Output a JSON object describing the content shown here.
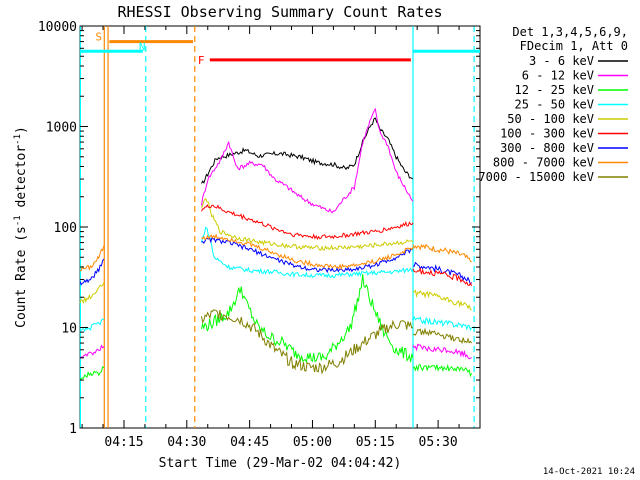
{
  "chart_data": {
    "type": "line",
    "title": "RHESSI Observing Summary Count Rates",
    "xlabel": "Start Time (29-Mar-02 04:04:42)",
    "ylabel_main": "Count Rate (s",
    "ylabel_sup1": "-1",
    "ylabel_mid": " detector",
    "ylabel_sup2": "-1",
    "ylabel_end": ")",
    "y_scale": "log",
    "ylim": [
      1,
      10000
    ],
    "xlim_minutes": [
      4.5,
      100
    ],
    "y_ticks": [
      {
        "value": 1,
        "label": "1"
      },
      {
        "value": 10,
        "label": "10"
      },
      {
        "value": 100,
        "label": "100"
      },
      {
        "value": 1000,
        "label": "1000"
      },
      {
        "value": 10000,
        "label": "10000"
      }
    ],
    "x_ticks": [
      {
        "minute": 15,
        "label": "04:15"
      },
      {
        "minute": 30,
        "label": "04:30"
      },
      {
        "minute": 45,
        "label": "04:45"
      },
      {
        "minute": 60,
        "label": "05:00"
      },
      {
        "minute": 75,
        "label": "05:15"
      },
      {
        "minute": 90,
        "label": "05:30"
      }
    ],
    "legend_header": [
      "Det 1,3,4,5,6,9,",
      "FDecim 1, Att 0"
    ],
    "legend_position": "top-right",
    "series": [
      {
        "name": "3 - 6 keV",
        "color": "#000000",
        "points": [
          [
            33.5,
            260
          ],
          [
            37,
            480
          ],
          [
            40,
            520
          ],
          [
            44,
            580
          ],
          [
            47,
            510
          ],
          [
            52,
            540
          ],
          [
            57,
            500
          ],
          [
            61,
            440
          ],
          [
            65,
            420
          ],
          [
            68,
            380
          ],
          [
            70,
            420
          ],
          [
            72,
            700
          ],
          [
            74,
            1050
          ],
          [
            75,
            1200
          ],
          [
            76,
            950
          ],
          [
            78,
            750
          ],
          [
            80,
            500
          ],
          [
            82,
            360
          ],
          [
            84,
            300
          ]
        ]
      },
      {
        "name": "6 - 12 keV",
        "color": "#ff00ff",
        "points": [
          [
            33.5,
            170
          ],
          [
            35,
            300
          ],
          [
            38,
            460
          ],
          [
            40,
            700
          ],
          [
            42,
            380
          ],
          [
            45,
            430
          ],
          [
            48,
            420
          ],
          [
            51,
            300
          ],
          [
            54,
            250
          ],
          [
            57,
            200
          ],
          [
            60,
            170
          ],
          [
            63,
            150
          ],
          [
            65,
            140
          ],
          [
            67,
            180
          ],
          [
            70,
            250
          ],
          [
            72,
            700
          ],
          [
            74,
            1200
          ],
          [
            75,
            1450
          ],
          [
            76,
            900
          ],
          [
            78,
            650
          ],
          [
            80,
            350
          ],
          [
            82,
            250
          ],
          [
            84,
            180
          ]
        ]
      },
      {
        "name": "12 - 25 keV",
        "color": "#00ff00",
        "points": [
          [
            33.5,
            10
          ],
          [
            36,
            11
          ],
          [
            40,
            14
          ],
          [
            43,
            25
          ],
          [
            44,
            18
          ],
          [
            47,
            10
          ],
          [
            50,
            8
          ],
          [
            53,
            7
          ],
          [
            56,
            5.5
          ],
          [
            60,
            5
          ],
          [
            63,
            5
          ],
          [
            66,
            7
          ],
          [
            69,
            10
          ],
          [
            71,
            20
          ],
          [
            72,
            30
          ],
          [
            74,
            18
          ],
          [
            77,
            9
          ],
          [
            80,
            6
          ],
          [
            84,
            5
          ]
        ]
      },
      {
        "name": "25 - 50 keV",
        "color": "#00ffff",
        "points": [
          [
            33.5,
            70
          ],
          [
            34.5,
            100
          ],
          [
            35.5,
            80
          ],
          [
            36.5,
            50
          ],
          [
            40,
            40
          ],
          [
            45,
            37
          ],
          [
            50,
            36
          ],
          [
            55,
            34
          ],
          [
            60,
            33
          ],
          [
            65,
            33
          ],
          [
            70,
            34
          ],
          [
            75,
            35
          ],
          [
            80,
            36
          ],
          [
            84,
            38
          ]
        ]
      },
      {
        "name": "50 - 100 keV",
        "color": "#cccc00",
        "points": [
          [
            33.5,
            150
          ],
          [
            34.5,
            200
          ],
          [
            36,
            130
          ],
          [
            38,
            90
          ],
          [
            42,
            78
          ],
          [
            48,
            70
          ],
          [
            54,
            65
          ],
          [
            60,
            62
          ],
          [
            66,
            62
          ],
          [
            72,
            64
          ],
          [
            78,
            68
          ],
          [
            84,
            72
          ]
        ]
      },
      {
        "name": "100 - 300 keV",
        "color": "#ff0000",
        "points": [
          [
            33.5,
            150
          ],
          [
            36,
            165
          ],
          [
            40,
            140
          ],
          [
            45,
            120
          ],
          [
            50,
            100
          ],
          [
            55,
            85
          ],
          [
            60,
            80
          ],
          [
            65,
            80
          ],
          [
            70,
            85
          ],
          [
            75,
            90
          ],
          [
            80,
            100
          ],
          [
            84,
            110
          ]
        ]
      },
      {
        "name": "300 - 800 keV",
        "color": "#0000ff",
        "points": [
          [
            33.5,
            72
          ],
          [
            36,
            75
          ],
          [
            40,
            70
          ],
          [
            45,
            60
          ],
          [
            50,
            50
          ],
          [
            55,
            42
          ],
          [
            60,
            38
          ],
          [
            65,
            37
          ],
          [
            70,
            38
          ],
          [
            75,
            42
          ],
          [
            80,
            50
          ],
          [
            84,
            60
          ]
        ]
      },
      {
        "name": "800 - 7000 keV",
        "color": "#ff8800",
        "points": [
          [
            33.5,
            78
          ],
          [
            37,
            80
          ],
          [
            41,
            75
          ],
          [
            46,
            65
          ],
          [
            51,
            55
          ],
          [
            56,
            46
          ],
          [
            61,
            42
          ],
          [
            66,
            40
          ],
          [
            71,
            42
          ],
          [
            76,
            47
          ],
          [
            81,
            55
          ],
          [
            84,
            63
          ]
        ]
      },
      {
        "name": "7000 - 15000 keV",
        "color": "#808000",
        "points": [
          [
            33.5,
            12
          ],
          [
            37,
            14
          ],
          [
            40,
            13
          ],
          [
            43,
            12
          ],
          [
            47,
            9
          ],
          [
            51,
            6
          ],
          [
            55,
            4.5
          ],
          [
            59,
            4
          ],
          [
            62,
            4
          ],
          [
            66,
            4.5
          ],
          [
            70,
            6
          ],
          [
            74,
            8
          ],
          [
            78,
            10
          ],
          [
            81,
            11
          ],
          [
            84,
            10
          ]
        ]
      }
    ],
    "pre_segment": {
      "x_range": [
        4.5,
        10.2
      ],
      "points_by_series": [
        {
          "color": "#ff8800",
          "points": [
            [
              4.5,
              38
            ],
            [
              7,
              40
            ],
            [
              9,
              50
            ],
            [
              10.2,
              65
            ]
          ]
        },
        {
          "color": "#0000ff",
          "points": [
            [
              4.5,
              28
            ],
            [
              7,
              30
            ],
            [
              9,
              38
            ],
            [
              10.2,
              48
            ]
          ]
        },
        {
          "color": "#cccc00",
          "points": [
            [
              4.5,
              18
            ],
            [
              7,
              20
            ],
            [
              9,
              24
            ],
            [
              10.2,
              28
            ]
          ]
        },
        {
          "color": "#00ffff",
          "points": [
            [
              4.5,
              9
            ],
            [
              7,
              10
            ],
            [
              9,
              11
            ],
            [
              10.2,
              12
            ]
          ]
        },
        {
          "color": "#ff00ff",
          "points": [
            [
              4.5,
              5
            ],
            [
              7,
              5.5
            ],
            [
              9,
              6
            ],
            [
              10.2,
              6.5
            ]
          ]
        },
        {
          "color": "#00ff00",
          "points": [
            [
              4.5,
              3
            ],
            [
              7,
              3.5
            ],
            [
              9,
              3.5
            ],
            [
              10.2,
              4
            ]
          ]
        }
      ]
    },
    "post_segment": {
      "x_range": [
        84,
        98
      ],
      "points_by_series": [
        {
          "color": "#ff8800",
          "points": [
            [
              84,
              66
            ],
            [
              88,
              62
            ],
            [
              92,
              58
            ],
            [
              96,
              52
            ],
            [
              98,
              45
            ]
          ]
        },
        {
          "color": "#0000ff",
          "points": [
            [
              84,
              42
            ],
            [
              88,
              40
            ],
            [
              92,
              36
            ],
            [
              96,
              32
            ],
            [
              98,
              28
            ]
          ]
        },
        {
          "color": "#ff0000",
          "points": [
            [
              84,
              36
            ],
            [
              88,
              36
            ],
            [
              92,
              33
            ],
            [
              96,
              30
            ],
            [
              98,
              26
            ]
          ]
        },
        {
          "color": "#cccc00",
          "points": [
            [
              84,
              22
            ],
            [
              88,
              21
            ],
            [
              92,
              19
            ],
            [
              96,
              17
            ],
            [
              98,
              15
            ]
          ]
        },
        {
          "color": "#00ffff",
          "points": [
            [
              84,
              12
            ],
            [
              88,
              11.5
            ],
            [
              92,
              11
            ],
            [
              96,
              10.5
            ],
            [
              98,
              10
            ]
          ]
        },
        {
          "color": "#808000",
          "points": [
            [
              84,
              9
            ],
            [
              88,
              9
            ],
            [
              92,
              8
            ],
            [
              96,
              7.5
            ],
            [
              98,
              7
            ]
          ]
        },
        {
          "color": "#ff00ff",
          "points": [
            [
              84,
              6.5
            ],
            [
              88,
              6
            ],
            [
              92,
              6
            ],
            [
              96,
              5.5
            ],
            [
              98,
              5
            ]
          ]
        },
        {
          "color": "#00ff00",
          "points": [
            [
              84,
              4
            ],
            [
              88,
              4
            ],
            [
              92,
              4
            ],
            [
              96,
              3.8
            ],
            [
              98,
              3.5
            ]
          ]
        }
      ]
    },
    "flag_bars": [
      {
        "label": "S",
        "color": "#ff8800",
        "x_start": 11.5,
        "x_end": 31.5,
        "level": 7000
      },
      {
        "label": "N",
        "color": "#00ffff",
        "x_start": 4.5,
        "x_end": 19.5,
        "level": 5600
      },
      {
        "label": "N",
        "color": "#00ffff",
        "x_start": 84,
        "x_end": 100,
        "level": 5600
      },
      {
        "label": "F",
        "color": "#ff0000",
        "x_start": 35.5,
        "x_end": 83.5,
        "level": 4600
      }
    ],
    "vertical_markers": [
      {
        "minute": 4.6,
        "color": "#00ffff",
        "style": "solid"
      },
      {
        "minute": 10.3,
        "color": "#ff8800",
        "style": "solid"
      },
      {
        "minute": 11.2,
        "color": "#ff8800",
        "style": "solid"
      },
      {
        "minute": 20.2,
        "color": "#00ffff",
        "style": "dash"
      },
      {
        "minute": 31.9,
        "color": "#ff8800",
        "style": "dash"
      },
      {
        "minute": 84.0,
        "color": "#00ffff",
        "style": "solid"
      },
      {
        "minute": 98.6,
        "color": "#00ffff",
        "style": "dash"
      }
    ],
    "footer_date": "14-Oct-2021 10:24"
  }
}
